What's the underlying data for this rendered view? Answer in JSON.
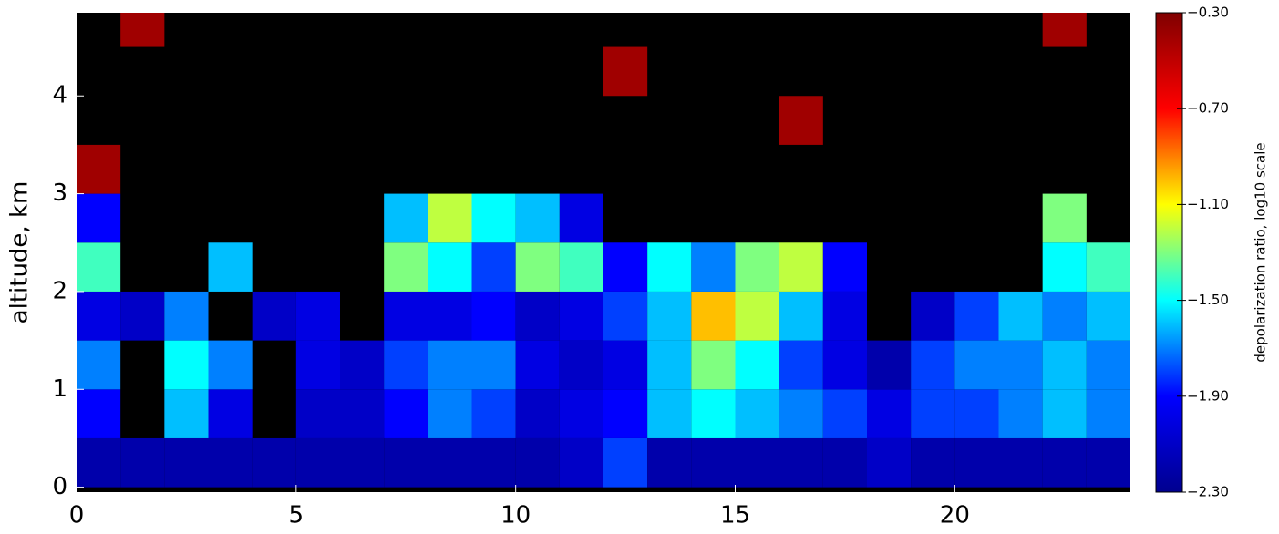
{
  "chart_data": {
    "type": "heatmap",
    "ylabel": "altitude, km",
    "colorbar_label": "depolarization ratio, log10 scale",
    "xlim": [
      0,
      24
    ],
    "ylim": [
      -0.05,
      4.85
    ],
    "xticks": [
      0,
      5,
      10,
      15,
      20
    ],
    "yticks": [
      0,
      1,
      2,
      3,
      4
    ],
    "xbins": [
      0,
      1,
      2,
      3,
      4,
      5,
      6,
      7,
      8,
      9,
      10,
      11,
      12,
      13,
      14,
      15,
      16,
      17,
      18,
      19,
      20,
      21,
      22,
      23,
      24
    ],
    "ybins": [
      0,
      0.5,
      1,
      1.5,
      2,
      2.5,
      3,
      3.5,
      4,
      4.5,
      4.85
    ],
    "background": "#000000",
    "colormap": [
      "#00008f",
      "#0000ff",
      "#00ffff",
      "#ffff00",
      "#ff0000",
      "#800000"
    ],
    "clim": [
      -2.3,
      -0.3
    ],
    "cticks": [
      {
        "value": -0.3,
        "label": "−0.30"
      },
      {
        "value": -0.7,
        "label": "−0.70"
      },
      {
        "value": -1.1,
        "label": "−1.10"
      },
      {
        "value": -1.5,
        "label": "−1.50"
      },
      {
        "value": -1.9,
        "label": "−1.90"
      },
      {
        "value": -2.3,
        "label": "−2.30"
      }
    ],
    "values": [
      [
        -2.2,
        -2.2,
        -2.2,
        -2.2,
        -2.2,
        -2.2,
        -2.2,
        -2.2,
        -2.2,
        -2.2,
        -2.2,
        -2.1,
        -1.8,
        -2.2,
        -2.2,
        -2.2,
        -2.2,
        -2.2,
        -2.1,
        -2.2,
        -2.2,
        -2.2,
        -2.2,
        -2.2
      ],
      [
        -1.9,
        null,
        -1.6,
        -2.0,
        null,
        -2.1,
        -2.1,
        -1.9,
        -1.7,
        -1.8,
        -2.1,
        -2.0,
        -1.9,
        -1.6,
        -1.5,
        -1.6,
        -1.7,
        -1.8,
        -2.0,
        -1.8,
        -1.8,
        -1.7,
        -1.6,
        -1.7
      ],
      [
        -1.7,
        null,
        -1.5,
        -1.7,
        null,
        -2.0,
        -2.1,
        -1.8,
        -1.7,
        -1.7,
        -2.0,
        -2.1,
        -2.0,
        -1.6,
        -1.3,
        -1.5,
        -1.8,
        -2.0,
        -2.2,
        -1.8,
        -1.7,
        -1.7,
        -1.6,
        -1.7
      ],
      [
        -2.0,
        -2.1,
        -1.7,
        null,
        -2.1,
        -2.0,
        null,
        -2.0,
        -2.0,
        -1.9,
        -2.1,
        -2.0,
        -1.8,
        -1.6,
        -1.0,
        -1.2,
        -1.6,
        -2.0,
        null,
        -2.1,
        -1.8,
        -1.6,
        -1.7,
        -1.6
      ],
      [
        -1.4,
        null,
        null,
        -1.6,
        null,
        null,
        null,
        -1.3,
        -1.5,
        -1.8,
        -1.3,
        -1.4,
        -1.9,
        -1.5,
        -1.7,
        -1.3,
        -1.2,
        -1.9,
        null,
        null,
        null,
        null,
        -1.5,
        -1.4
      ],
      [
        -1.9,
        null,
        null,
        null,
        null,
        null,
        null,
        -1.6,
        -1.2,
        -1.5,
        -1.6,
        -2.0,
        null,
        null,
        null,
        null,
        null,
        null,
        null,
        null,
        null,
        null,
        -1.3,
        null
      ],
      [
        -0.4,
        null,
        null,
        null,
        null,
        null,
        null,
        null,
        null,
        null,
        null,
        null,
        null,
        null,
        null,
        null,
        null,
        null,
        null,
        null,
        null,
        null,
        null,
        null
      ],
      [
        null,
        null,
        null,
        null,
        null,
        null,
        null,
        null,
        null,
        null,
        null,
        null,
        null,
        null,
        null,
        null,
        -0.4,
        null,
        null,
        null,
        null,
        null,
        null,
        null
      ],
      [
        null,
        null,
        null,
        null,
        null,
        null,
        null,
        null,
        null,
        null,
        null,
        null,
        -0.4,
        null,
        null,
        null,
        null,
        null,
        null,
        null,
        null,
        null,
        null,
        null
      ],
      [
        null,
        -0.4,
        null,
        null,
        null,
        null,
        null,
        null,
        null,
        null,
        null,
        null,
        null,
        null,
        null,
        null,
        null,
        null,
        null,
        null,
        null,
        null,
        -0.4,
        null
      ]
    ]
  }
}
